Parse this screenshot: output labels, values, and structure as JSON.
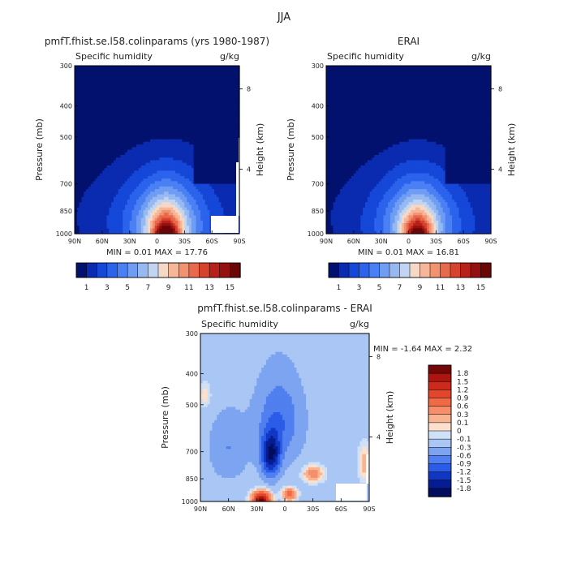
{
  "header": {
    "title": "JJA"
  },
  "chart_data": [
    {
      "type": "heatmap",
      "title": "pmfT.fhist.se.l58.colinparams (yrs 1980-1987)",
      "variable": "Specific humidity",
      "units": "g/kg",
      "xlabel": "",
      "ylabel": "Pressure (mb)",
      "y2label": "Height (km)",
      "x_ticks": [
        "90N",
        "60N",
        "30N",
        "0",
        "30S",
        "60S",
        "90S"
      ],
      "x_range": [
        90,
        -90
      ],
      "y_ticks": [
        "300",
        "400",
        "500",
        "700",
        "850",
        "1000"
      ],
      "y_range": [
        300,
        1000
      ],
      "y_scale": "log",
      "y2_ticks": [
        "8",
        "4"
      ],
      "stats": "MIN =     0.01    MAX =   17.76",
      "min": 0.01,
      "max": 17.76,
      "colorbar_orientation": "horizontal",
      "colorbar_labels": [
        "1",
        "3",
        "5",
        "7",
        "9",
        "11",
        "13",
        "15"
      ],
      "colorbar_levels": [
        1,
        2,
        3,
        4,
        5,
        6,
        7,
        8,
        9,
        10,
        11,
        12,
        13,
        14,
        15
      ]
    },
    {
      "type": "heatmap",
      "title": "ERAI",
      "variable": "Specific humidity",
      "units": "g/kg",
      "xlabel": "",
      "ylabel": "Pressure (mb)",
      "y2label": "Height (km)",
      "x_ticks": [
        "90N",
        "60N",
        "30N",
        "0",
        "30S",
        "60S",
        "90S"
      ],
      "x_range": [
        90,
        -90
      ],
      "y_ticks": [
        "300",
        "400",
        "500",
        "700",
        "850",
        "1000"
      ],
      "y_range": [
        300,
        1000
      ],
      "y_scale": "log",
      "y2_ticks": [
        "8",
        "4"
      ],
      "stats": "MIN =     0.01    MAX =   16.81",
      "min": 0.01,
      "max": 16.81,
      "colorbar_orientation": "horizontal",
      "colorbar_labels": [
        "1",
        "3",
        "5",
        "7",
        "9",
        "11",
        "13",
        "15"
      ],
      "colorbar_levels": [
        1,
        2,
        3,
        4,
        5,
        6,
        7,
        8,
        9,
        10,
        11,
        12,
        13,
        14,
        15
      ]
    },
    {
      "type": "heatmap",
      "title": "pmfT.fhist.se.l58.colinparams - ERAI",
      "variable": "Specific humidity",
      "units": "g/kg",
      "xlabel": "",
      "ylabel": "Pressure (mb)",
      "y2label": "Height (km)",
      "x_ticks": [
        "90N",
        "60N",
        "30N",
        "0",
        "30S",
        "60S",
        "90S"
      ],
      "x_range": [
        90,
        -90
      ],
      "y_ticks": [
        "300",
        "400",
        "500",
        "700",
        "850",
        "1000"
      ],
      "y_range": [
        300,
        1000
      ],
      "y_scale": "log",
      "y2_ticks": [
        "8",
        "4"
      ],
      "stats": "MIN =    -1.64    MAX =    2.32",
      "min": -1.64,
      "max": 2.32,
      "colorbar_orientation": "vertical",
      "colorbar_labels": [
        "1.8",
        "1.5",
        "1.2",
        "0.9",
        "0.6",
        "0.3",
        "0.1",
        "0",
        "-0.1",
        "-0.3",
        "-0.6",
        "-0.9",
        "-1.2",
        "-1.5",
        "-1.8"
      ],
      "colorbar_levels": [
        1.8,
        1.5,
        1.2,
        0.9,
        0.6,
        0.3,
        0.1,
        0,
        -0.1,
        -0.3,
        -0.6,
        -0.9,
        -1.2,
        -1.5,
        -1.8
      ]
    }
  ],
  "colors": {
    "sequential": [
      "#03116e",
      "#0a2ab0",
      "#1547d8",
      "#2b63ec",
      "#4a80f3",
      "#6f9df3",
      "#97b9f1",
      "#c1d4f2",
      "#f6d8c6",
      "#f6b699",
      "#f2926f",
      "#e8694b",
      "#d5432e",
      "#b8211a",
      "#951010",
      "#6b0606"
    ],
    "diverging": [
      "#730606",
      "#ac1510",
      "#cd2a1c",
      "#e2472e",
      "#f06a46",
      "#f68e69",
      "#f8b393",
      "#fbe0cd",
      "#cfe1f7",
      "#a9c6f4",
      "#7da4f1",
      "#507ff0",
      "#2b5ce8",
      "#1036c2",
      "#061c93",
      "#020d5c"
    ],
    "missing": "#ffffff"
  }
}
